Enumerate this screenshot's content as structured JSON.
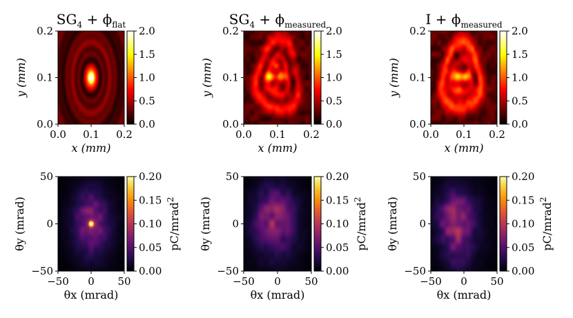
{
  "chart_data": [
    {
      "type": "heatmap",
      "panel": "top-left",
      "colormap": "hot",
      "title": {
        "main": "SG",
        "sub4": "4",
        "mid": " + ϕ",
        "sub": "flat"
      },
      "xlabel": "x (mm)",
      "ylabel": "y (mm)",
      "xlim": [
        0.0,
        0.2
      ],
      "ylim": [
        0.0,
        0.2
      ],
      "xticks": [
        "0.0",
        "0.1",
        "0.2"
      ],
      "yticks": [
        "0.0",
        "0.1",
        "0.2"
      ],
      "colorbar": {
        "range": [
          0.0,
          2.0
        ],
        "ticks": [
          "0.0",
          "0.5",
          "1.0",
          "1.5",
          "2.0"
        ],
        "label": ""
      },
      "features": "concentric diffraction rings around a bright central spot at (0.1, 0.1), peak ≈ 2.0"
    },
    {
      "type": "heatmap",
      "panel": "top-middle",
      "colormap": "hot",
      "title": {
        "main": "SG",
        "sub4": "4",
        "mid": " + ϕ",
        "sub": "measured"
      },
      "xlabel": "x (mm)",
      "ylabel": "y (mm)",
      "xlim": [
        0.0,
        0.2
      ],
      "ylim": [
        0.0,
        0.2
      ],
      "xticks": [
        "0.0",
        "0.1",
        "0.2"
      ],
      "yticks": [
        "0.0",
        "0.1",
        "0.2"
      ],
      "colorbar": {
        "range": [
          0.0,
          2.0
        ],
        "ticks": [
          "0.0",
          "0.5",
          "1.0",
          "1.5",
          "2.0"
        ],
        "label": ""
      },
      "features": "distorted ring with several hot spots near the centre"
    },
    {
      "type": "heatmap",
      "panel": "top-right",
      "colormap": "hot",
      "title": {
        "main": "I",
        "sub4": "",
        "mid": " + ϕ",
        "sub": "measured"
      },
      "xlabel": "x (mm)",
      "ylabel": "y (mm)",
      "xlim": [
        0.0,
        0.2
      ],
      "ylim": [
        0.0,
        0.2
      ],
      "xticks": [
        "0.0",
        "0.1",
        "0.2"
      ],
      "yticks": [
        "0.0",
        "0.1",
        "0.2"
      ],
      "colorbar": {
        "range": [
          0.0,
          2.0
        ],
        "ticks": [
          "0.0",
          "0.5",
          "1.0",
          "1.5",
          "2.0"
        ],
        "label": ""
      },
      "features": "distorted ring with hot spots, slightly shifted to the left"
    },
    {
      "type": "heatmap",
      "panel": "bottom-left",
      "colormap": "inferno",
      "xlabel": "θx (mrad)",
      "ylabel": "θy (mrad)",
      "xlim": [
        -50,
        50
      ],
      "ylim": [
        -50,
        50
      ],
      "xticks": [
        "−50",
        "0",
        "50"
      ],
      "yticks": [
        "−50",
        "0",
        "50"
      ],
      "colorbar": {
        "range": [
          0.0,
          0.2
        ],
        "ticks": [
          "0.00",
          "0.05",
          "0.10",
          "0.15",
          "0.20"
        ],
        "label": "pC/mrad",
        "label_sup": "2"
      },
      "features": "bright narrow peak at (0, 0) on a broad diffuse halo"
    },
    {
      "type": "heatmap",
      "panel": "bottom-middle",
      "colormap": "inferno",
      "xlabel": "θx (mrad)",
      "ylabel": "θy (mrad)",
      "xlim": [
        -50,
        50
      ],
      "ylim": [
        -50,
        50
      ],
      "xticks": [
        "−50",
        "0",
        "50"
      ],
      "yticks": [
        "−50",
        "0",
        "50"
      ],
      "colorbar": {
        "range": [
          0.0,
          0.2
        ],
        "ticks": [
          "0.00",
          "0.05",
          "0.10",
          "0.15",
          "0.20"
        ],
        "label": "pC/mrad",
        "label_sup": "2"
      },
      "features": "broad diffuse distribution centred near (-5, 5), peak ≈ 0.07"
    },
    {
      "type": "heatmap",
      "panel": "bottom-right",
      "colormap": "inferno",
      "xlabel": "θx (mrad)",
      "ylabel": "θy (mrad)",
      "xlim": [
        -50,
        50
      ],
      "ylim": [
        -50,
        50
      ],
      "xticks": [
        "−50",
        "0",
        "50"
      ],
      "yticks": [
        "−50",
        "0",
        "50"
      ],
      "colorbar": {
        "range": [
          0.0,
          0.2
        ],
        "ticks": [
          "0.00",
          "0.05",
          "0.10",
          "0.15",
          "0.20"
        ],
        "label": "pC/mrad",
        "label_sup": "2"
      },
      "features": "broad distribution with tail toward negative θy, centred near (-15, 5)"
    }
  ]
}
